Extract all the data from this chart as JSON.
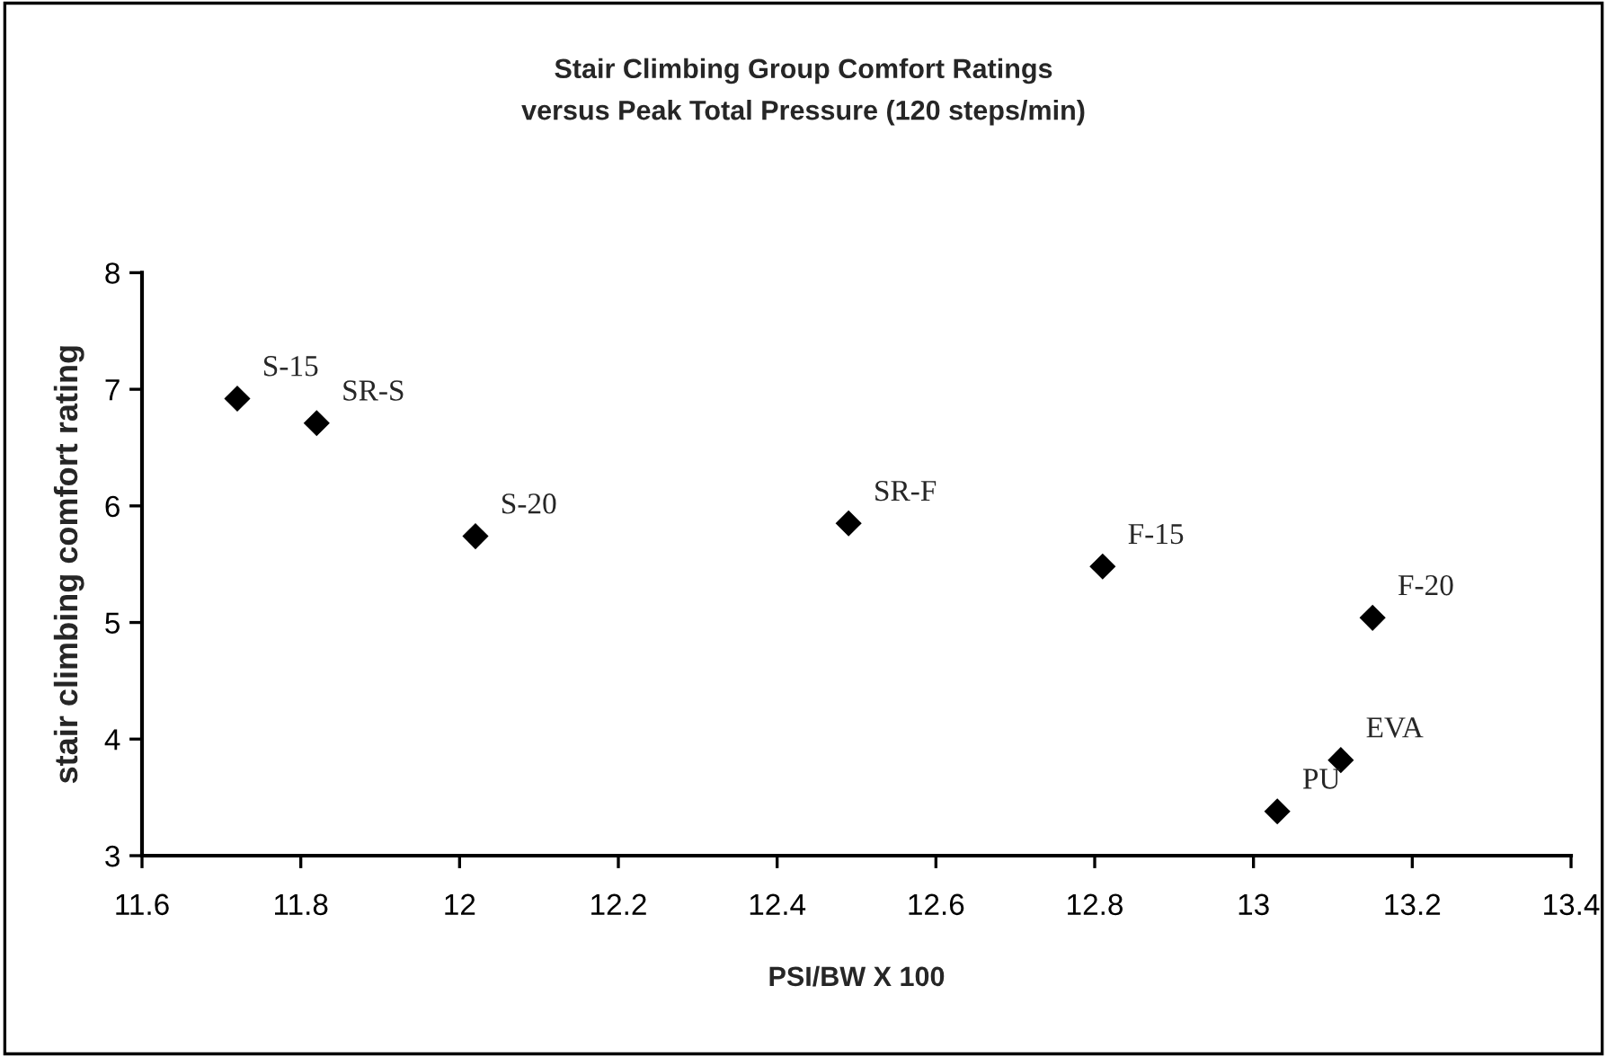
{
  "chart_data": {
    "type": "scatter",
    "title": "Stair Climbing Group Comfort Ratings\nversus Peak Total Pressure (120 steps/min)",
    "xlabel": "PSI/BW X 100",
    "ylabel": "stair climbing comfort rating",
    "x": [
      11.72,
      11.82,
      12.02,
      12.49,
      12.81,
      13.15,
      13.11,
      13.03
    ],
    "series": [
      {
        "color": "#000000",
        "values": [
          6.92,
          6.71,
          5.74,
          5.85,
          5.48,
          5.04,
          3.82,
          3.38
        ]
      }
    ],
    "annotations": [
      {
        "text": "S-15",
        "x": 11.72,
        "y": 6.92
      },
      {
        "text": "SR-S",
        "x": 11.82,
        "y": 6.71
      },
      {
        "text": "S-20",
        "x": 12.02,
        "y": 5.74
      },
      {
        "text": "SR-F",
        "x": 12.49,
        "y": 5.85
      },
      {
        "text": "F-15",
        "x": 12.81,
        "y": 5.48
      },
      {
        "text": "F-20",
        "x": 13.15,
        "y": 5.04
      },
      {
        "text": "EVA",
        "x": 13.11,
        "y": 3.82
      },
      {
        "text": "PU",
        "x": 13.03,
        "y": 3.38
      }
    ],
    "xlim": [
      11.6,
      13.4
    ],
    "xticks": [
      11.6,
      11.8,
      12,
      12.2,
      12.4,
      12.6,
      12.8,
      13,
      13.2,
      13.4
    ],
    "ylim": [
      3,
      8
    ],
    "yticks": [
      3,
      4,
      5,
      6,
      7,
      8
    ],
    "grid": false,
    "legend": false,
    "marker": "diamond"
  }
}
